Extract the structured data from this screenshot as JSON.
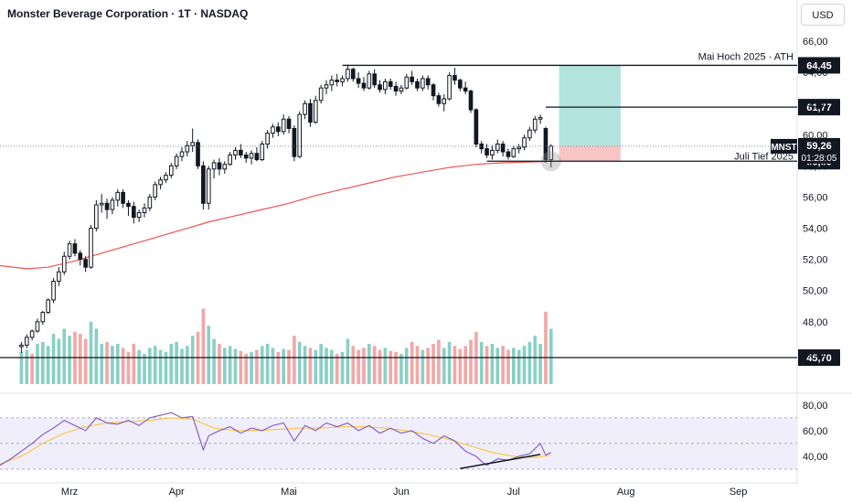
{
  "header": {
    "title": "Monster Beverage Corporation · 1T · NASDAQ",
    "currency": "USD"
  },
  "chart_data": {
    "type": "candlestick",
    "price_axis": {
      "ticks": [
        66,
        64,
        62,
        60,
        58,
        56,
        54,
        52,
        50,
        48,
        46
      ],
      "tick_labels": [
        "66,00",
        "64,00",
        "62,00",
        "60,00",
        "58,00",
        "56,00",
        "54,00",
        "52,00",
        "50,00",
        "48,00",
        "46,00"
      ],
      "range": [
        44,
        67
      ]
    },
    "rsi_axis": {
      "ticks": [
        80,
        60,
        40
      ],
      "tick_labels": [
        "80,00",
        "60,00",
        "40,00"
      ],
      "range": [
        25,
        82
      ],
      "band": [
        30,
        70
      ]
    },
    "x_axis": {
      "labels": [
        "Mrz",
        "Apr",
        "Mai",
        "Jun",
        "Jul",
        "Aug",
        "Sep"
      ],
      "positions": [
        9,
        29,
        50,
        71,
        92,
        113,
        134
      ],
      "range": [
        -4,
        145
      ]
    },
    "candles": [
      [
        46.4,
        46.7,
        46.0,
        46.5
      ],
      [
        46.5,
        47.2,
        46.3,
        47.0
      ],
      [
        47.0,
        47.5,
        46.8,
        47.4
      ],
      [
        47.4,
        48.2,
        47.3,
        48.0
      ],
      [
        48.0,
        48.7,
        47.8,
        48.6
      ],
      [
        48.6,
        49.5,
        48.5,
        49.4
      ],
      [
        49.4,
        50.8,
        49.2,
        50.6
      ],
      [
        50.6,
        51.5,
        50.3,
        51.2
      ],
      [
        51.2,
        52.5,
        51.0,
        52.2
      ],
      [
        52.2,
        53.2,
        52.0,
        53.0
      ],
      [
        53.0,
        53.3,
        52.2,
        52.4
      ],
      [
        52.4,
        52.6,
        51.6,
        52.0
      ],
      [
        52.0,
        52.2,
        51.2,
        51.5
      ],
      [
        51.5,
        54.2,
        51.4,
        54.0
      ],
      [
        54.0,
        55.8,
        53.8,
        55.5
      ],
      [
        55.5,
        56.2,
        55.0,
        55.6
      ],
      [
        55.6,
        55.9,
        54.6,
        55.2
      ],
      [
        55.2,
        56.0,
        54.9,
        55.8
      ],
      [
        55.8,
        56.5,
        55.4,
        56.3
      ],
      [
        56.3,
        56.5,
        55.3,
        55.6
      ],
      [
        55.6,
        55.8,
        54.8,
        55.4
      ],
      [
        55.4,
        55.7,
        54.3,
        54.7
      ],
      [
        54.7,
        55.2,
        54.4,
        55.0
      ],
      [
        55.0,
        55.6,
        54.7,
        55.3
      ],
      [
        55.3,
        56.2,
        55.1,
        56.0
      ],
      [
        56.0,
        57.0,
        55.8,
        56.8
      ],
      [
        56.8,
        57.3,
        56.5,
        57.1
      ],
      [
        57.1,
        57.6,
        56.9,
        57.4
      ],
      [
        57.4,
        58.2,
        57.2,
        58.0
      ],
      [
        58.0,
        58.8,
        57.8,
        58.6
      ],
      [
        58.6,
        59.2,
        58.3,
        58.9
      ],
      [
        58.9,
        59.6,
        58.6,
        59.3
      ],
      [
        59.3,
        60.4,
        58.9,
        59.5
      ],
      [
        59.5,
        59.7,
        57.8,
        58.0
      ],
      [
        58.0,
        58.3,
        55.2,
        55.6
      ],
      [
        55.6,
        58.0,
        55.2,
        57.8
      ],
      [
        57.8,
        58.4,
        57.2,
        58.2
      ],
      [
        58.2,
        58.5,
        57.4,
        57.8
      ],
      [
        57.8,
        58.3,
        57.5,
        58.1
      ],
      [
        58.1,
        58.9,
        58.0,
        58.7
      ],
      [
        58.7,
        59.2,
        58.4,
        59.0
      ],
      [
        59.0,
        59.4,
        58.5,
        58.7
      ],
      [
        58.7,
        58.9,
        58.2,
        58.5
      ],
      [
        58.5,
        59.0,
        58.1,
        58.8
      ],
      [
        58.8,
        59.2,
        58.3,
        58.4
      ],
      [
        58.4,
        59.6,
        58.3,
        59.4
      ],
      [
        59.4,
        60.3,
        59.1,
        60.1
      ],
      [
        60.1,
        60.7,
        59.8,
        60.5
      ],
      [
        60.5,
        60.8,
        59.9,
        60.2
      ],
      [
        60.2,
        61.3,
        60.0,
        61.0
      ],
      [
        61.0,
        61.2,
        60.1,
        60.4
      ],
      [
        60.4,
        60.6,
        58.3,
        58.6
      ],
      [
        58.6,
        61.5,
        58.5,
        61.3
      ],
      [
        61.3,
        62.2,
        61.0,
        62.0
      ],
      [
        62.0,
        62.3,
        60.5,
        60.8
      ],
      [
        60.8,
        62.5,
        60.7,
        62.2
      ],
      [
        62.2,
        63.2,
        62.0,
        63.0
      ],
      [
        63.0,
        63.5,
        62.6,
        63.2
      ],
      [
        63.2,
        63.8,
        62.8,
        63.5
      ],
      [
        63.5,
        63.9,
        63.1,
        63.4
      ],
      [
        63.4,
        63.8,
        63.1,
        63.6
      ],
      [
        63.6,
        64.5,
        63.4,
        64.2
      ],
      [
        64.2,
        64.3,
        63.4,
        63.6
      ],
      [
        63.6,
        64.0,
        63.0,
        63.3
      ],
      [
        63.3,
        63.7,
        62.8,
        63.0
      ],
      [
        63.0,
        64.1,
        62.9,
        63.9
      ],
      [
        63.9,
        64.2,
        63.0,
        63.2
      ],
      [
        63.2,
        63.5,
        62.7,
        62.9
      ],
      [
        62.9,
        63.6,
        62.6,
        63.4
      ],
      [
        63.4,
        63.6,
        62.9,
        63.1
      ],
      [
        63.1,
        63.4,
        62.5,
        62.8
      ],
      [
        62.8,
        63.2,
        62.6,
        63.0
      ],
      [
        63.0,
        63.9,
        62.9,
        63.7
      ],
      [
        63.7,
        64.1,
        63.2,
        63.4
      ],
      [
        63.4,
        63.6,
        62.8,
        63.0
      ],
      [
        63.0,
        63.8,
        62.8,
        63.6
      ],
      [
        63.6,
        63.8,
        62.9,
        63.2
      ],
      [
        63.2,
        63.3,
        62.2,
        62.5
      ],
      [
        62.5,
        62.7,
        61.8,
        62.0
      ],
      [
        62.0,
        62.6,
        61.5,
        62.3
      ],
      [
        62.3,
        64.0,
        62.2,
        63.8
      ],
      [
        63.8,
        64.3,
        63.2,
        63.5
      ],
      [
        63.5,
        63.6,
        62.8,
        63.0
      ],
      [
        63.0,
        63.4,
        62.6,
        62.8
      ],
      [
        62.8,
        62.9,
        61.4,
        61.6
      ],
      [
        61.6,
        61.7,
        59.2,
        59.4
      ],
      [
        59.4,
        59.6,
        58.8,
        59.1
      ],
      [
        59.1,
        59.4,
        58.5,
        58.7
      ],
      [
        58.7,
        59.3,
        58.4,
        59.0
      ],
      [
        59.0,
        59.7,
        58.8,
        59.4
      ],
      [
        59.4,
        59.6,
        58.6,
        58.9
      ],
      [
        58.9,
        59.1,
        58.4,
        58.6
      ],
      [
        58.6,
        59.3,
        58.5,
        59.1
      ],
      [
        59.1,
        59.4,
        58.8,
        59.2
      ],
      [
        59.2,
        60.0,
        59.0,
        59.8
      ],
      [
        59.8,
        60.5,
        59.6,
        60.3
      ],
      [
        60.3,
        61.2,
        60.1,
        61.0
      ],
      [
        61.0,
        61.3,
        60.7,
        61.1
      ],
      [
        60.4,
        60.5,
        58.2,
        58.4
      ],
      [
        58.4,
        59.4,
        57.9,
        59.26
      ]
    ],
    "volume": [
      [
        0.32,
        1
      ],
      [
        0.34,
        1
      ],
      [
        0.3,
        0
      ],
      [
        0.4,
        1
      ],
      [
        0.42,
        1
      ],
      [
        0.38,
        1
      ],
      [
        0.5,
        1
      ],
      [
        0.45,
        1
      ],
      [
        0.55,
        1
      ],
      [
        0.48,
        1
      ],
      [
        0.52,
        0
      ],
      [
        0.5,
        0
      ],
      [
        0.45,
        0
      ],
      [
        0.62,
        1
      ],
      [
        0.55,
        1
      ],
      [
        0.4,
        1
      ],
      [
        0.42,
        0
      ],
      [
        0.38,
        1
      ],
      [
        0.4,
        1
      ],
      [
        0.36,
        0
      ],
      [
        0.32,
        0
      ],
      [
        0.4,
        0
      ],
      [
        0.34,
        1
      ],
      [
        0.3,
        1
      ],
      [
        0.36,
        1
      ],
      [
        0.38,
        1
      ],
      [
        0.34,
        1
      ],
      [
        0.32,
        1
      ],
      [
        0.4,
        1
      ],
      [
        0.42,
        1
      ],
      [
        0.35,
        1
      ],
      [
        0.38,
        1
      ],
      [
        0.48,
        1
      ],
      [
        0.52,
        0
      ],
      [
        0.75,
        0
      ],
      [
        0.58,
        1
      ],
      [
        0.45,
        1
      ],
      [
        0.4,
        0
      ],
      [
        0.36,
        1
      ],
      [
        0.38,
        1
      ],
      [
        0.35,
        1
      ],
      [
        0.33,
        0
      ],
      [
        0.3,
        0
      ],
      [
        0.32,
        1
      ],
      [
        0.34,
        0
      ],
      [
        0.38,
        1
      ],
      [
        0.4,
        1
      ],
      [
        0.36,
        1
      ],
      [
        0.32,
        0
      ],
      [
        0.35,
        1
      ],
      [
        0.34,
        0
      ],
      [
        0.48,
        0
      ],
      [
        0.42,
        1
      ],
      [
        0.38,
        1
      ],
      [
        0.36,
        0
      ],
      [
        0.34,
        1
      ],
      [
        0.4,
        1
      ],
      [
        0.36,
        1
      ],
      [
        0.34,
        1
      ],
      [
        0.3,
        0
      ],
      [
        0.32,
        1
      ],
      [
        0.45,
        1
      ],
      [
        0.38,
        0
      ],
      [
        0.34,
        0
      ],
      [
        0.36,
        0
      ],
      [
        0.4,
        1
      ],
      [
        0.38,
        0
      ],
      [
        0.34,
        0
      ],
      [
        0.36,
        1
      ],
      [
        0.33,
        0
      ],
      [
        0.32,
        0
      ],
      [
        0.3,
        1
      ],
      [
        0.36,
        1
      ],
      [
        0.42,
        0
      ],
      [
        0.38,
        0
      ],
      [
        0.34,
        1
      ],
      [
        0.36,
        0
      ],
      [
        0.4,
        0
      ],
      [
        0.44,
        0
      ],
      [
        0.36,
        1
      ],
      [
        0.42,
        1
      ],
      [
        0.38,
        0
      ],
      [
        0.35,
        0
      ],
      [
        0.38,
        0
      ],
      [
        0.44,
        0
      ],
      [
        0.52,
        0
      ],
      [
        0.42,
        1
      ],
      [
        0.38,
        0
      ],
      [
        0.4,
        1
      ],
      [
        0.36,
        1
      ],
      [
        0.38,
        0
      ],
      [
        0.34,
        0
      ],
      [
        0.36,
        1
      ],
      [
        0.34,
        1
      ],
      [
        0.38,
        1
      ],
      [
        0.42,
        1
      ],
      [
        0.48,
        1
      ],
      [
        0.4,
        1
      ],
      [
        0.72,
        0
      ],
      [
        0.55,
        1
      ]
    ],
    "sma200": [
      [
        -4,
        51.6
      ],
      [
        1,
        51.4
      ],
      [
        5,
        51.5
      ],
      [
        10,
        51.9
      ],
      [
        15,
        52.4
      ],
      [
        20,
        52.9
      ],
      [
        25,
        53.4
      ],
      [
        30,
        53.9
      ],
      [
        35,
        54.4
      ],
      [
        40,
        54.8
      ],
      [
        45,
        55.2
      ],
      [
        50,
        55.6
      ],
      [
        55,
        56.1
      ],
      [
        60,
        56.5
      ],
      [
        65,
        56.9
      ],
      [
        70,
        57.3
      ],
      [
        75,
        57.6
      ],
      [
        80,
        57.9
      ],
      [
        85,
        58.1
      ],
      [
        90,
        58.2
      ],
      [
        95,
        58.25
      ],
      [
        99,
        58.3
      ]
    ],
    "rsi": [
      [
        -4,
        33
      ],
      [
        -2,
        38
      ],
      [
        0,
        44
      ],
      [
        2,
        50
      ],
      [
        4,
        57
      ],
      [
        6,
        62
      ],
      [
        8,
        68
      ],
      [
        10,
        64
      ],
      [
        12,
        60
      ],
      [
        14,
        70
      ],
      [
        16,
        66
      ],
      [
        18,
        65
      ],
      [
        20,
        68
      ],
      [
        22,
        64
      ],
      [
        24,
        70
      ],
      [
        26,
        72
      ],
      [
        28,
        74
      ],
      [
        30,
        70
      ],
      [
        32,
        71
      ],
      [
        33,
        58
      ],
      [
        34,
        45
      ],
      [
        35,
        56
      ],
      [
        37,
        60
      ],
      [
        39,
        63
      ],
      [
        41,
        58
      ],
      [
        43,
        62
      ],
      [
        45,
        60
      ],
      [
        47,
        64
      ],
      [
        49,
        66
      ],
      [
        51,
        52
      ],
      [
        53,
        64
      ],
      [
        55,
        60
      ],
      [
        57,
        66
      ],
      [
        59,
        63
      ],
      [
        61,
        66
      ],
      [
        63,
        60
      ],
      [
        65,
        64
      ],
      [
        67,
        58
      ],
      [
        69,
        62
      ],
      [
        71,
        58
      ],
      [
        73,
        60
      ],
      [
        75,
        54
      ],
      [
        77,
        50
      ],
      [
        79,
        56
      ],
      [
        81,
        52
      ],
      [
        83,
        44
      ],
      [
        85,
        40
      ],
      [
        86,
        36
      ],
      [
        87,
        33
      ],
      [
        89,
        38
      ],
      [
        91,
        37
      ],
      [
        93,
        40
      ],
      [
        95,
        42
      ],
      [
        96,
        46
      ],
      [
        97,
        50
      ],
      [
        98,
        41
      ],
      [
        99,
        43
      ]
    ],
    "rsi_ma": [
      [
        -4,
        34
      ],
      [
        0,
        40
      ],
      [
        4,
        50
      ],
      [
        8,
        58
      ],
      [
        12,
        63
      ],
      [
        16,
        66
      ],
      [
        20,
        67
      ],
      [
        24,
        68
      ],
      [
        28,
        70
      ],
      [
        32,
        69
      ],
      [
        36,
        62
      ],
      [
        40,
        60
      ],
      [
        44,
        60
      ],
      [
        48,
        61
      ],
      [
        52,
        62
      ],
      [
        56,
        62
      ],
      [
        60,
        63
      ],
      [
        64,
        63
      ],
      [
        68,
        62
      ],
      [
        72,
        60
      ],
      [
        76,
        57
      ],
      [
        80,
        53
      ],
      [
        84,
        48
      ],
      [
        88,
        43
      ],
      [
        92,
        40
      ],
      [
        96,
        39
      ],
      [
        99,
        41
      ]
    ],
    "position": {
      "entry": 59.26,
      "target": 64.45,
      "stop": 58.3,
      "x_start": 100.5,
      "x_end": 112
    },
    "levels": [
      {
        "price": 64.45,
        "label": "64,45",
        "x_start": 60,
        "note": "Mai Hoch 2025 · ATH"
      },
      {
        "price": 61.77,
        "label": "61,77",
        "x_start": 98,
        "note": ""
      },
      {
        "price": 58.3,
        "label": "58,30",
        "x_start": 87,
        "note": "Juli Tief 2025"
      },
      {
        "price": 45.7,
        "label": "45,70",
        "x_start": -4,
        "note": ""
      }
    ],
    "last_price": {
      "price": 59.26,
      "label": "59,26",
      "symbol": "MNST",
      "countdown": "01:28:05"
    },
    "rsi_trendline": [
      [
        82,
        30.5
      ],
      [
        97,
        41.5
      ]
    ]
  }
}
